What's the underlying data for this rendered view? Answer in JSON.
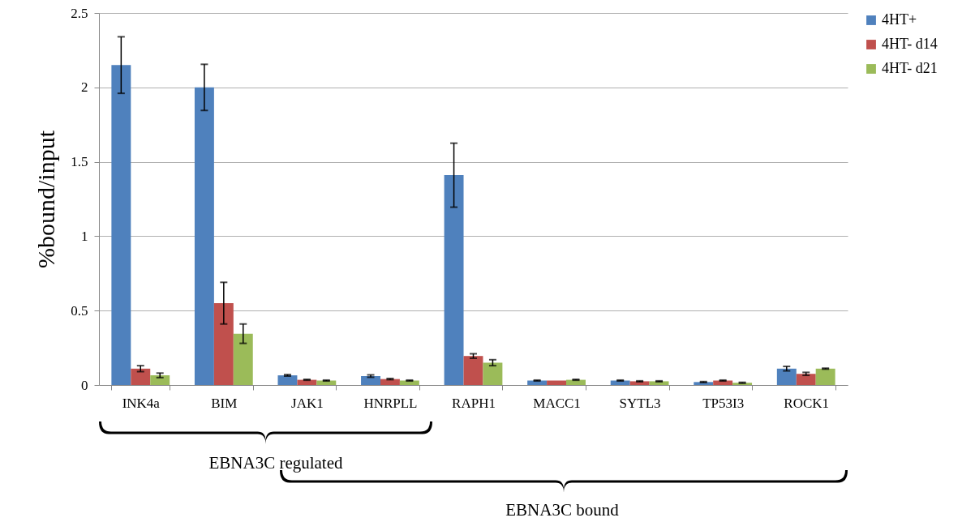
{
  "chart_data": {
    "type": "bar",
    "ylabel": "%bound/input",
    "categories": [
      "INK4a",
      "BIM",
      "JAK1",
      "HNRPLL",
      "RAPH1",
      "MACC1",
      "SYTL3",
      "TP53I3",
      "ROCK1"
    ],
    "series": [
      {
        "name": "4HT+",
        "color": "#4f81bd",
        "values": [
          2.15,
          2.0,
          0.065,
          0.06,
          1.41,
          0.03,
          0.03,
          0.02,
          0.11
        ],
        "errors": [
          0.19,
          0.155,
          0.005,
          0.008,
          0.215,
          0.003,
          0.003,
          0.003,
          0.015
        ]
      },
      {
        "name": "4HT- d14",
        "color": "#c0504d",
        "values": [
          0.11,
          0.55,
          0.035,
          0.04,
          0.195,
          0.03,
          0.025,
          0.03,
          0.075
        ],
        "errors": [
          0.02,
          0.14,
          0.003,
          0.004,
          0.015,
          null,
          0.003,
          0.003,
          0.01
        ]
      },
      {
        "name": "4HT- d21",
        "color": "#9bbb59",
        "values": [
          0.065,
          0.345,
          0.03,
          0.03,
          0.15,
          0.035,
          0.025,
          0.015,
          0.11
        ],
        "errors": [
          0.015,
          0.065,
          0.003,
          0.003,
          0.02,
          0.003,
          0.003,
          0.003,
          0.003
        ]
      }
    ],
    "ylim": [
      0,
      2.5
    ],
    "yticks": [
      0,
      0.5,
      1,
      1.5,
      2,
      2.5
    ],
    "grid": "y",
    "legend": "right",
    "annotations": [
      "EBNA3C regulated",
      "EBNA3C bound"
    ]
  }
}
